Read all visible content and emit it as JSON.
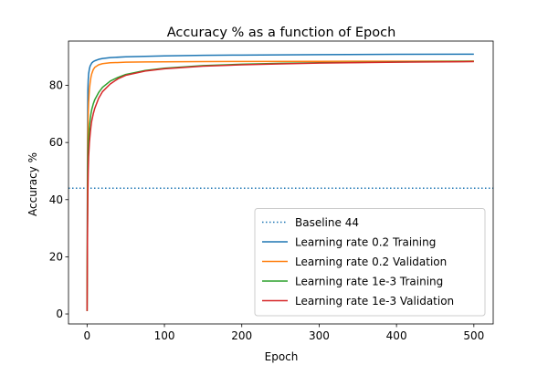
{
  "chart_data": {
    "type": "line",
    "title": "Accuracy % as a function of Epoch",
    "xlabel": "Epoch",
    "ylabel": "Accuracy %",
    "xlim": [
      -24,
      525
    ],
    "ylim": [
      -3.5,
      95.5
    ],
    "xticks": [
      0,
      100,
      200,
      300,
      400,
      500
    ],
    "yticks": [
      0,
      20,
      40,
      60,
      80
    ],
    "grid": false,
    "legend_position": "lower-right",
    "baseline": {
      "name": "Baseline 44",
      "value": 44,
      "color": "#1f77b4",
      "style": "dotted"
    },
    "series": [
      {
        "name": "Learning rate 0.2 Training",
        "color": "#1f77b4",
        "x": [
          0,
          0.5,
          1,
          1.5,
          2,
          3,
          4,
          5,
          6,
          8,
          10,
          15,
          20,
          30,
          50,
          75,
          100,
          150,
          200,
          300,
          400,
          500
        ],
        "y": [
          1,
          55,
          78,
          82,
          84,
          85.8,
          86.8,
          87.3,
          87.8,
          88.3,
          88.6,
          89.1,
          89.4,
          89.7,
          90.0,
          90.15,
          90.3,
          90.5,
          90.6,
          90.75,
          90.85,
          90.9
        ]
      },
      {
        "name": "Learning rate 0.2 Validation",
        "color": "#ff7f0e",
        "x": [
          0,
          0.5,
          1,
          1.5,
          2,
          3,
          4,
          5,
          6,
          8,
          10,
          15,
          20,
          30,
          50,
          75,
          100,
          150,
          200,
          300,
          400,
          500
        ],
        "y": [
          1,
          40,
          62,
          70,
          74,
          78.5,
          81,
          82.8,
          84,
          85.5,
          86.3,
          87.2,
          87.6,
          87.9,
          88.1,
          88.2,
          88.25,
          88.3,
          88.35,
          88.4,
          88.45,
          88.5
        ]
      },
      {
        "name": "Learning rate 1e-3 Training",
        "color": "#2ca02c",
        "x": [
          0,
          0.5,
          1,
          1.5,
          2,
          3,
          4,
          5,
          6,
          8,
          10,
          15,
          20,
          30,
          40,
          50,
          75,
          100,
          150,
          200,
          250,
          300,
          400,
          500
        ],
        "y": [
          1,
          30,
          50,
          57,
          61,
          65.5,
          68,
          70,
          71.5,
          73.5,
          75,
          77.5,
          79.3,
          81.5,
          82.8,
          83.8,
          85.2,
          86,
          86.9,
          87.4,
          87.7,
          87.9,
          88.2,
          88.4
        ]
      },
      {
        "name": "Learning rate 1e-3 Validation",
        "color": "#d62728",
        "x": [
          0,
          0.5,
          1,
          1.5,
          2,
          3,
          4,
          5,
          6,
          8,
          10,
          15,
          20,
          30,
          40,
          50,
          75,
          100,
          150,
          200,
          250,
          300,
          400,
          500
        ],
        "y": [
          1,
          25,
          42,
          50,
          55,
          60,
          63,
          65.5,
          67.5,
          70,
          72,
          75.5,
          77.8,
          80.5,
          82.3,
          83.5,
          85,
          85.8,
          86.7,
          87.2,
          87.5,
          87.8,
          88.1,
          88.3
        ]
      }
    ]
  }
}
